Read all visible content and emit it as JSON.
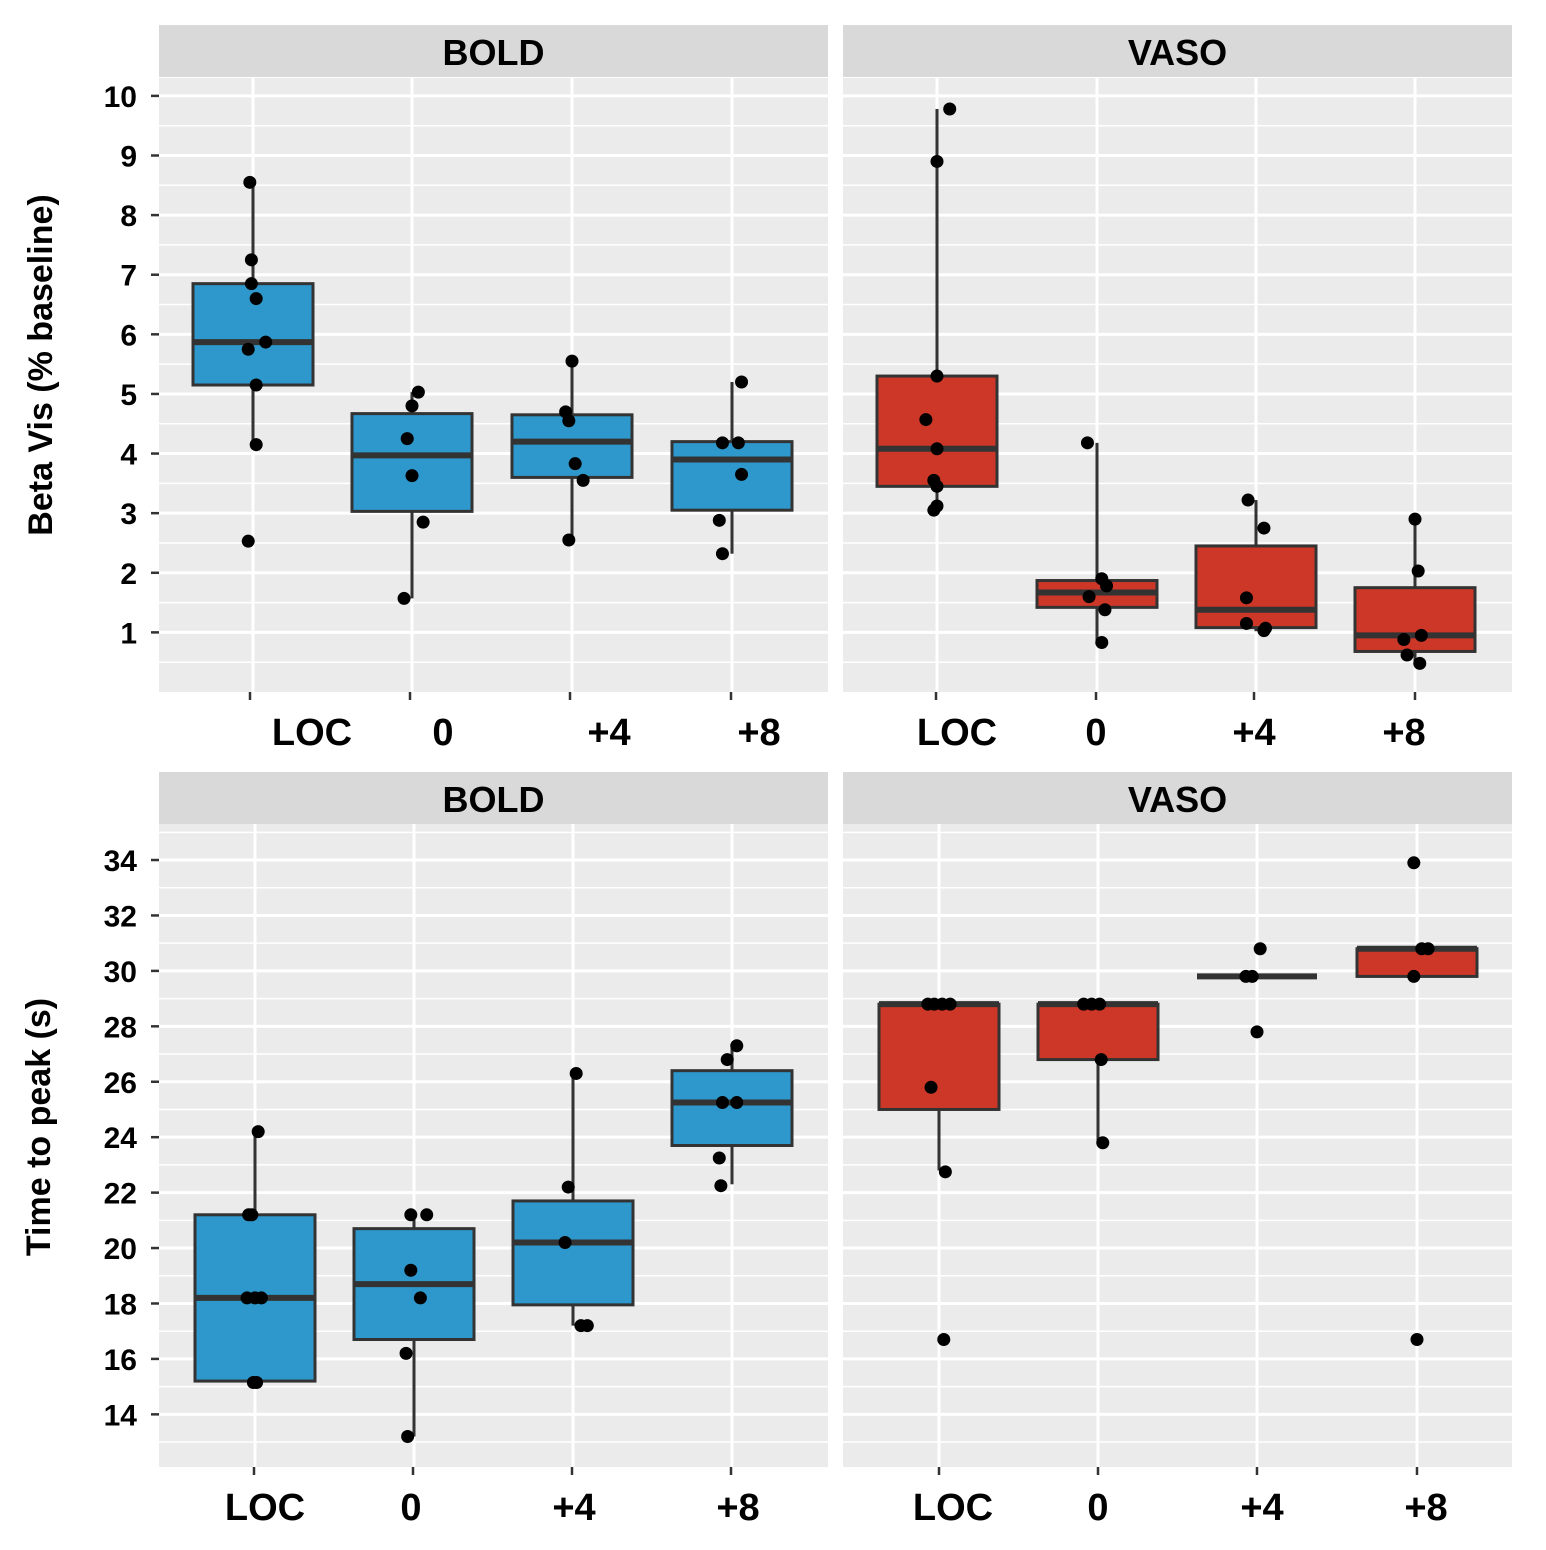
{
  "chart_data": [
    {
      "type": "box",
      "facet": "BOLD",
      "ylabel": "Beta Vis  (% baseline)",
      "ylim": [
        0,
        10.3
      ],
      "yticks": [
        1,
        2,
        3,
        4,
        5,
        6,
        7,
        8,
        9,
        10
      ],
      "categories": [
        "LOC",
        "0",
        "+4",
        "+8"
      ],
      "category_labels": [
        "LOC",
        "0",
        "+4",
        "+8"
      ],
      "color": "#2e98cc",
      "boxes": [
        {
          "q1": 5.15,
          "median": 5.87,
          "q3": 6.85,
          "wlow": 4.15,
          "whigh": 8.55
        },
        {
          "q1": 3.03,
          "median": 3.97,
          "q3": 4.67,
          "wlow": 1.57,
          "whigh": 5.03
        },
        {
          "q1": 3.6,
          "median": 4.2,
          "q3": 4.65,
          "wlow": 2.55,
          "whigh": 5.55
        },
        {
          "q1": 3.05,
          "median": 3.9,
          "q3": 4.2,
          "wlow": 2.32,
          "whigh": 5.2
        }
      ],
      "points": [
        [
          [
            -0.02,
            8.55
          ],
          [
            -0.01,
            7.25
          ],
          [
            -0.01,
            6.85
          ],
          [
            0.02,
            6.6
          ],
          [
            -0.03,
            5.75
          ],
          [
            0.08,
            5.87
          ],
          [
            0.02,
            5.15
          ],
          [
            0.02,
            4.15
          ],
          [
            -0.03,
            2.53
          ]
        ],
        [
          [
            0.04,
            5.03
          ],
          [
            0.0,
            4.8
          ],
          [
            -0.03,
            4.25
          ],
          [
            0.0,
            3.63
          ],
          [
            0.07,
            2.85
          ],
          [
            -0.05,
            1.57
          ]
        ],
        [
          [
            -0.04,
            4.7
          ],
          [
            -0.02,
            4.55
          ],
          [
            0.0,
            5.55
          ],
          [
            0.02,
            3.83
          ],
          [
            0.07,
            3.55
          ],
          [
            -0.02,
            2.55
          ]
        ],
        [
          [
            0.06,
            5.2
          ],
          [
            -0.06,
            4.18
          ],
          [
            0.04,
            4.18
          ],
          [
            0.06,
            3.65
          ],
          [
            -0.08,
            2.88
          ],
          [
            -0.06,
            2.32
          ]
        ]
      ]
    },
    {
      "type": "box",
      "facet": "VASO",
      "ylabel": "Beta Vis  (% baseline)",
      "ylim": [
        0,
        10.3
      ],
      "yticks": [
        1,
        2,
        3,
        4,
        5,
        6,
        7,
        8,
        9,
        10
      ],
      "categories": [
        "LOC",
        "0",
        "+4",
        "+8"
      ],
      "category_labels": [
        "LOC",
        "0",
        "+4",
        "+8"
      ],
      "color": "#cc3727",
      "boxes": [
        {
          "q1": 3.45,
          "median": 4.08,
          "q3": 5.3,
          "wlow": 3.05,
          "whigh": 9.78
        },
        {
          "q1": 1.42,
          "median": 1.67,
          "q3": 1.87,
          "wlow": 0.83,
          "whigh": 4.18
        },
        {
          "q1": 1.08,
          "median": 1.38,
          "q3": 2.45,
          "wlow": 1.02,
          "whigh": 3.22
        },
        {
          "q1": 0.68,
          "median": 0.95,
          "q3": 1.75,
          "wlow": 0.48,
          "whigh": 2.9
        }
      ],
      "points": [
        [
          [
            0.08,
            9.78
          ],
          [
            0.0,
            8.9
          ],
          [
            0.0,
            5.3
          ],
          [
            -0.07,
            4.57
          ],
          [
            0.0,
            4.08
          ],
          [
            -0.02,
            3.55
          ],
          [
            0.0,
            3.45
          ],
          [
            0.0,
            3.12
          ],
          [
            -0.02,
            3.05
          ]
        ],
        [
          [
            -0.06,
            4.18
          ],
          [
            0.03,
            1.9
          ],
          [
            0.06,
            1.78
          ],
          [
            -0.05,
            1.6
          ],
          [
            0.05,
            1.38
          ],
          [
            0.03,
            0.83
          ]
        ],
        [
          [
            -0.05,
            3.22
          ],
          [
            0.05,
            2.75
          ],
          [
            -0.06,
            1.58
          ],
          [
            -0.06,
            1.15
          ],
          [
            0.06,
            1.07
          ],
          [
            0.05,
            1.03
          ]
        ],
        [
          [
            0.0,
            2.9
          ],
          [
            0.02,
            2.03
          ],
          [
            0.04,
            0.95
          ],
          [
            -0.07,
            0.88
          ],
          [
            -0.05,
            0.62
          ],
          [
            0.03,
            0.48
          ]
        ]
      ]
    },
    {
      "type": "box",
      "facet": "BOLD",
      "ylabel": "Time to peak (s)",
      "ylim": [
        12.1,
        35.3
      ],
      "yticks": [
        14,
        16,
        18,
        20,
        22,
        24,
        26,
        28,
        30,
        32,
        34
      ],
      "categories": [
        "LOC",
        "0",
        "+4",
        "+8"
      ],
      "category_labels": [
        "LOC",
        "0",
        "+4",
        "+8"
      ],
      "color": "#2e98cc",
      "boxes": [
        {
          "q1": 15.2,
          "median": 18.2,
          "q3": 21.2,
          "wlow": 15.2,
          "whigh": 24.2
        },
        {
          "q1": 16.7,
          "median": 18.7,
          "q3": 20.7,
          "wlow": 13.2,
          "whigh": 21.2
        },
        {
          "q1": 17.95,
          "median": 20.2,
          "q3": 21.7,
          "wlow": 17.2,
          "whigh": 26.3
        },
        {
          "q1": 23.7,
          "median": 25.25,
          "q3": 26.4,
          "wlow": 22.3,
          "whigh": 27.3
        }
      ],
      "points": [
        [
          [
            0.02,
            24.2
          ],
          [
            -0.04,
            21.2
          ],
          [
            -0.02,
            21.2
          ],
          [
            -0.05,
            18.2
          ],
          [
            0.0,
            18.2
          ],
          [
            0.04,
            18.2
          ],
          [
            -0.01,
            15.15
          ],
          [
            0.01,
            15.15
          ]
        ],
        [
          [
            -0.02,
            21.2
          ],
          [
            0.08,
            21.2
          ],
          [
            -0.02,
            19.2
          ],
          [
            0.04,
            18.2
          ],
          [
            -0.05,
            16.2
          ],
          [
            -0.04,
            13.2
          ]
        ],
        [
          [
            -0.03,
            22.2
          ],
          [
            0.02,
            26.3
          ],
          [
            -0.05,
            20.2
          ],
          [
            0.05,
            17.2
          ],
          [
            0.09,
            17.2
          ]
        ],
        [
          [
            0.03,
            27.3
          ],
          [
            -0.03,
            26.8
          ],
          [
            -0.06,
            25.25
          ],
          [
            0.03,
            25.25
          ],
          [
            -0.08,
            23.25
          ],
          [
            -0.07,
            22.25
          ]
        ]
      ]
    },
    {
      "type": "box",
      "facet": "VASO",
      "ylabel": "Time to peak (s)",
      "ylim": [
        12.1,
        35.3
      ],
      "yticks": [
        14,
        16,
        18,
        20,
        22,
        24,
        26,
        28,
        30,
        32,
        34
      ],
      "categories": [
        "LOC",
        "0",
        "+4",
        "+8"
      ],
      "category_labels": [
        "LOC",
        "0",
        "+4",
        "+8"
      ],
      "color": "#cc3727",
      "boxes": [
        {
          "q1": 25.0,
          "median": 28.8,
          "q3": 28.8,
          "wlow": 22.8,
          "whigh": 28.8
        },
        {
          "q1": 26.8,
          "median": 28.8,
          "q3": 28.8,
          "wlow": 23.8,
          "whigh": 28.8
        },
        {
          "q1": 29.8,
          "median": 29.8,
          "q3": 29.8,
          "wlow": 29.8,
          "whigh": 29.8
        },
        {
          "q1": 29.8,
          "median": 30.8,
          "q3": 30.8,
          "wlow": 29.8,
          "whigh": 30.8
        }
      ],
      "points": [
        [
          [
            -0.07,
            28.8
          ],
          [
            -0.03,
            28.8
          ],
          [
            0.02,
            28.8
          ],
          [
            0.07,
            28.8
          ],
          [
            -0.05,
            25.8
          ],
          [
            0.04,
            22.75
          ],
          [
            0.03,
            16.7
          ]
        ],
        [
          [
            -0.09,
            28.8
          ],
          [
            -0.04,
            28.8
          ],
          [
            0.01,
            28.8
          ],
          [
            0.02,
            26.8
          ],
          [
            0.03,
            23.8
          ]
        ],
        [
          [
            -0.07,
            29.8
          ],
          [
            -0.03,
            29.8
          ],
          [
            0.02,
            30.8
          ],
          [
            0.0,
            27.8
          ]
        ],
        [
          [
            -0.02,
            33.9
          ],
          [
            0.03,
            30.8
          ],
          [
            0.07,
            30.8
          ],
          [
            -0.02,
            29.8
          ],
          [
            0.0,
            16.7
          ]
        ]
      ]
    }
  ]
}
